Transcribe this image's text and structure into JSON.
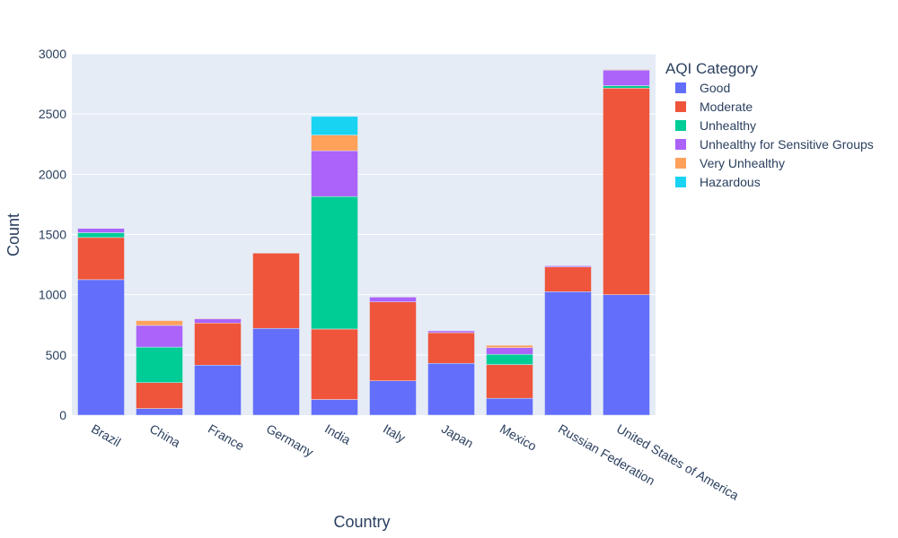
{
  "chart_data": {
    "type": "bar",
    "stacked": true,
    "xlabel": "Country",
    "ylabel": "Count",
    "ylim": [
      0,
      3000
    ],
    "yticks": [
      0,
      500,
      1000,
      1500,
      2000,
      2500,
      3000
    ],
    "legend_title": "AQI Category",
    "legend_position": "right",
    "grid": true,
    "plot_background": "#e5ecf6",
    "categories": [
      "Brazil",
      "China",
      "France",
      "Germany",
      "India",
      "Italy",
      "Japan",
      "Mexico",
      "Russian Federation",
      "United States of America"
    ],
    "series": [
      {
        "name": "Good",
        "color": "#636efa",
        "values": [
          1125,
          55,
          415,
          720,
          130,
          285,
          430,
          140,
          1025,
          1000
        ]
      },
      {
        "name": "Moderate",
        "color": "#ef553b",
        "values": [
          350,
          215,
          350,
          625,
          585,
          655,
          255,
          280,
          205,
          1715
        ]
      },
      {
        "name": "Unhealthy",
        "color": "#00cc96",
        "values": [
          40,
          295,
          0,
          0,
          1100,
          0,
          0,
          85,
          0,
          20
        ]
      },
      {
        "name": "Unhealthy for Sensitive Groups",
        "color": "#ab63fa",
        "values": [
          35,
          180,
          35,
          0,
          380,
          40,
          15,
          55,
          10,
          130
        ]
      },
      {
        "name": "Very Unhealthy",
        "color": "#ffa15a",
        "values": [
          0,
          40,
          5,
          0,
          130,
          0,
          0,
          20,
          0,
          5
        ]
      },
      {
        "name": "Hazardous",
        "color": "#19d3f3",
        "values": [
          0,
          0,
          0,
          0,
          155,
          0,
          0,
          0,
          0,
          0
        ]
      }
    ]
  }
}
